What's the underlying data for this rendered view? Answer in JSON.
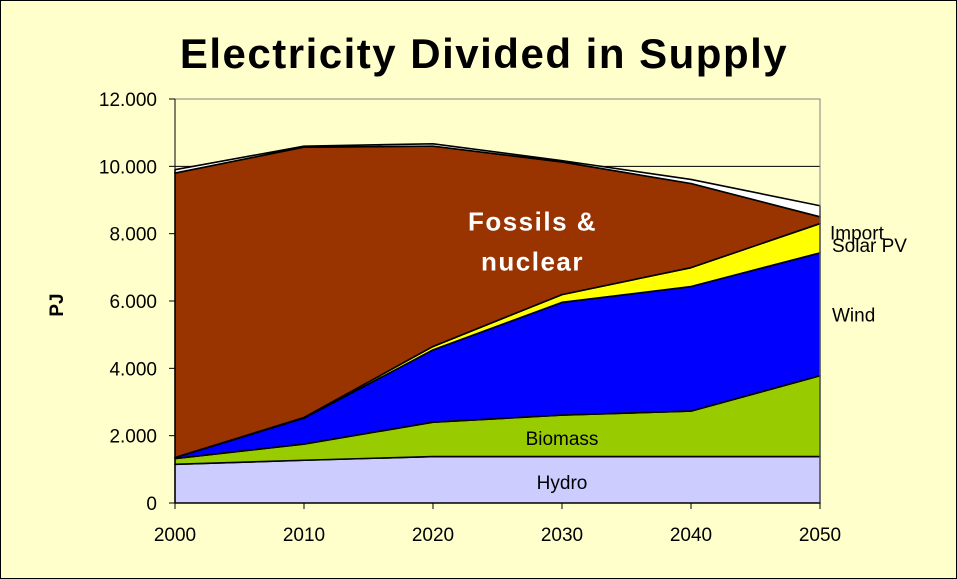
{
  "chart_data": {
    "type": "area",
    "stacked": true,
    "title": "Electricity Divided in Supply",
    "ylabel": "PJ",
    "xlabel": "",
    "x": [
      2000,
      2010,
      2020,
      2030,
      2040,
      2050
    ],
    "x_tick_labels": [
      "2000",
      "2010",
      "2020",
      "2030",
      "2040",
      "2050"
    ],
    "ylim": [
      0,
      12000
    ],
    "y_ticks": [
      0,
      2000,
      4000,
      6000,
      8000,
      10000,
      12000
    ],
    "y_tick_labels": [
      "0",
      "2.000",
      "4.000",
      "6.000",
      "8.000",
      "10.000",
      "12.000"
    ],
    "grid": "horizontal",
    "series": [
      {
        "name": "Hydro",
        "color": "#ccccff",
        "values": [
          1150,
          1270,
          1380,
          1380,
          1380,
          1380
        ]
      },
      {
        "name": "Biomass",
        "color": "#99cc00",
        "values": [
          170,
          480,
          1020,
          1230,
          1350,
          2400
        ]
      },
      {
        "name": "Wind",
        "color": "#0000ff",
        "values": [
          30,
          770,
          2150,
          3350,
          3700,
          3650
        ]
      },
      {
        "name": "Solar PV",
        "color": "#ffff00",
        "values": [
          0,
          20,
          100,
          230,
          560,
          870
        ]
      },
      {
        "name": "Fossils & nuclear",
        "label_lines": [
          "Fossils &",
          "nuclear"
        ],
        "color": "#993300",
        "values": [
          8450,
          8030,
          5950,
          3940,
          2500,
          200
        ]
      },
      {
        "name": "Import",
        "color": "#ffffff",
        "values": [
          100,
          30,
          70,
          40,
          120,
          330
        ]
      }
    ]
  }
}
